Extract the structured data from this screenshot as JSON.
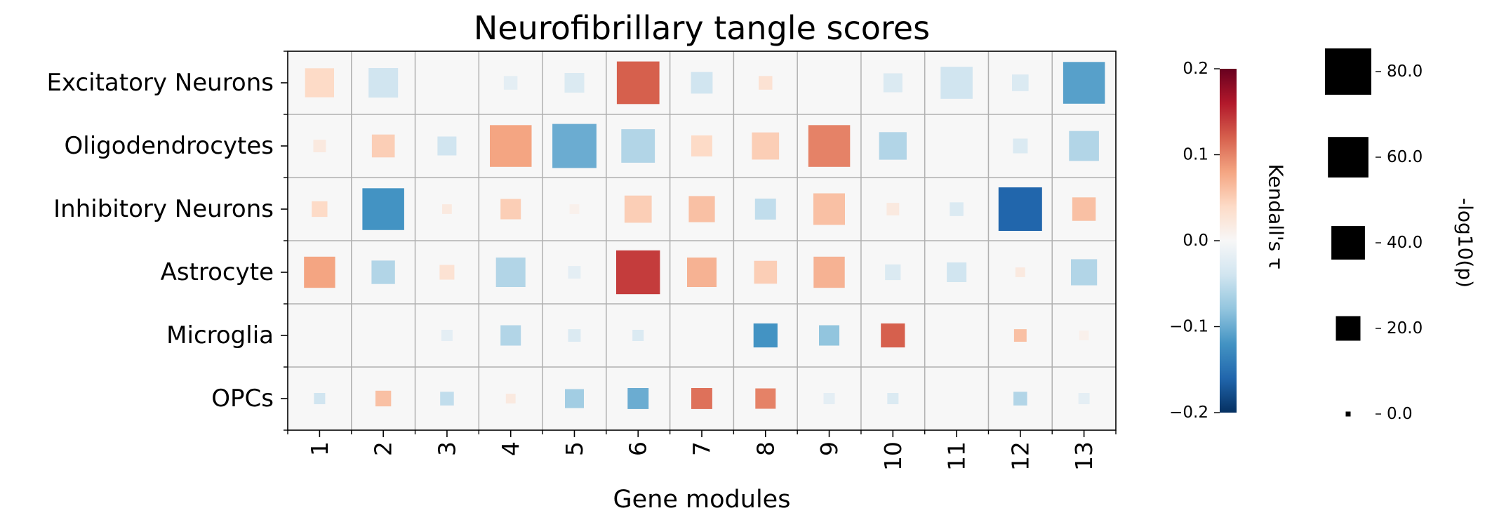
{
  "chart_data": {
    "type": "heatmap",
    "title": "Neurofibrillary tangle scores",
    "xlabel": "Gene modules",
    "ylabel": "",
    "x_categories": [
      "1",
      "2",
      "3",
      "4",
      "5",
      "6",
      "7",
      "8",
      "9",
      "10",
      "11",
      "12",
      "13"
    ],
    "y_categories": [
      "Excitatory Neurons",
      "Oligodendrocytes",
      "Inhibitory Neurons",
      "Astrocyte",
      "Microglia",
      "OPCs"
    ],
    "grid": true,
    "cell_background": "#f7f7f7",
    "grid_color": "#b0b0b0",
    "tau": [
      [
        0.04,
        -0.04,
        0.0,
        -0.02,
        -0.03,
        0.12,
        -0.04,
        0.03,
        0.0,
        -0.03,
        -0.04,
        -0.03,
        -0.11
      ],
      [
        0.02,
        0.05,
        -0.04,
        0.08,
        -0.1,
        -0.06,
        0.04,
        0.05,
        0.1,
        -0.06,
        0.0,
        -0.03,
        -0.06
      ],
      [
        0.04,
        -0.12,
        0.02,
        0.05,
        0.01,
        0.05,
        0.06,
        -0.05,
        0.06,
        0.02,
        -0.03,
        -0.16,
        0.06
      ],
      [
        0.08,
        -0.06,
        0.03,
        -0.06,
        -0.02,
        0.14,
        0.07,
        0.05,
        0.07,
        -0.03,
        -0.04,
        0.02,
        -0.06
      ],
      [
        0.0,
        0.0,
        -0.02,
        -0.06,
        -0.03,
        -0.03,
        0.0,
        -0.12,
        -0.08,
        0.12,
        0.0,
        0.06,
        0.01
      ],
      [
        -0.04,
        0.06,
        -0.05,
        0.02,
        -0.07,
        -0.1,
        0.11,
        0.1,
        -0.02,
        -0.03,
        0.0,
        -0.06,
        -0.02
      ]
    ],
    "neg_log10_p": [
      [
        29,
        30,
        0,
        5,
        12,
        67,
        15,
        5,
        0,
        11,
        36,
        8,
        64
      ],
      [
        4,
        17,
        11,
        64,
        72,
        40,
        14,
        25,
        64,
        26,
        0,
        6,
        31
      ],
      [
        7,
        64,
        2,
        13,
        2,
        25,
        23,
        14,
        35,
        4,
        5,
        70,
        18
      ],
      [
        34,
        18,
        6,
        30,
        4,
        71,
        30,
        17,
        34,
        7,
        12,
        2,
        23
      ],
      [
        1,
        0,
        3,
        13,
        4,
        3,
        0,
        19,
        13,
        19,
        1,
        4,
        2
      ],
      [
        3,
        7,
        5,
        2,
        11,
        14,
        14,
        13,
        3,
        3,
        0,
        5,
        3
      ]
    ],
    "colorbar": {
      "label": "Kendall's τ",
      "range": [
        -0.2,
        0.2
      ],
      "colormap": "RdBu_r",
      "ticks": [
        "0.2",
        "0.1",
        "0.0",
        "−0.1",
        "−0.2"
      ],
      "tick_values": [
        0.2,
        0.1,
        0.0,
        -0.1,
        -0.2
      ]
    },
    "size_legend": {
      "label": "-log10(p)",
      "max_value": 80,
      "entries": [
        {
          "label": "80.0",
          "value": 80
        },
        {
          "label": "60.0",
          "value": 60
        },
        {
          "label": "40.0",
          "value": 40
        },
        {
          "label": "20.0",
          "value": 20
        },
        {
          "label": "0.0",
          "value": 0
        }
      ]
    }
  }
}
